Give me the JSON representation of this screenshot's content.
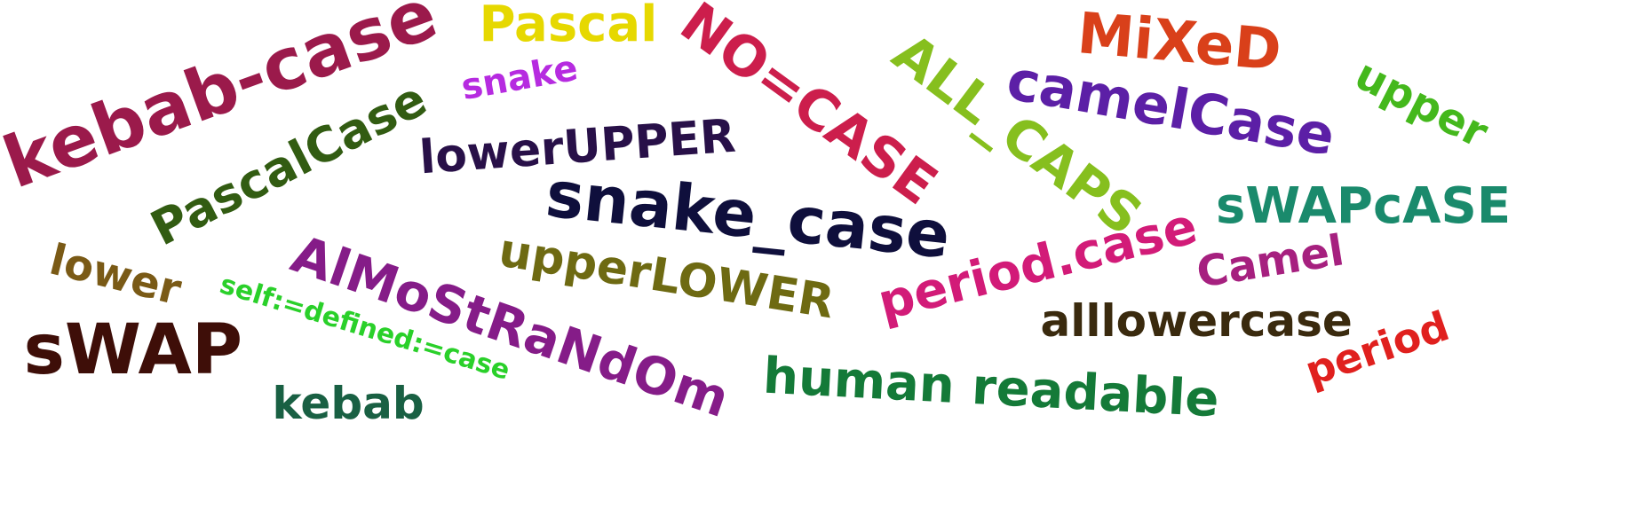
{
  "words": [
    {
      "text": "kebab-case",
      "color": "#9b1a4b"
    },
    {
      "text": "Pascal",
      "color": "#e6d800"
    },
    {
      "text": "snake",
      "color": "#b62be0"
    },
    {
      "text": "NO=CASE",
      "color": "#cc1e4c"
    },
    {
      "text": "ALL_CAPS",
      "color": "#86bf1e"
    },
    {
      "text": "MiXeD",
      "color": "#d9401a"
    },
    {
      "text": "camelCase",
      "color": "#5c1fa6"
    },
    {
      "text": "upper",
      "color": "#44b81c"
    },
    {
      "text": "PascalCase",
      "color": "#325c12"
    },
    {
      "text": "lowerUPPER",
      "color": "#281048"
    },
    {
      "text": "snake_case",
      "color": "#0f0f3c"
    },
    {
      "text": "sWAPcASE",
      "color": "#1a8a6c"
    },
    {
      "text": "lower",
      "color": "#7a5a16"
    },
    {
      "text": "AlMoStRaNdOm",
      "color": "#851c88"
    },
    {
      "text": "upperLOWER",
      "color": "#6e6a12"
    },
    {
      "text": "period.case",
      "color": "#d21b78"
    },
    {
      "text": "Camel",
      "color": "#a6207f"
    },
    {
      "text": "self:=defined:=case",
      "color": "#2ad02a"
    },
    {
      "text": "alllowercase",
      "color": "#3a2a0e"
    },
    {
      "text": "sWAP",
      "color": "#3e0e08"
    },
    {
      "text": "period",
      "color": "#e0201e"
    },
    {
      "text": "human readable",
      "color": "#147a38"
    },
    {
      "text": "kebab",
      "color": "#196043"
    }
  ]
}
